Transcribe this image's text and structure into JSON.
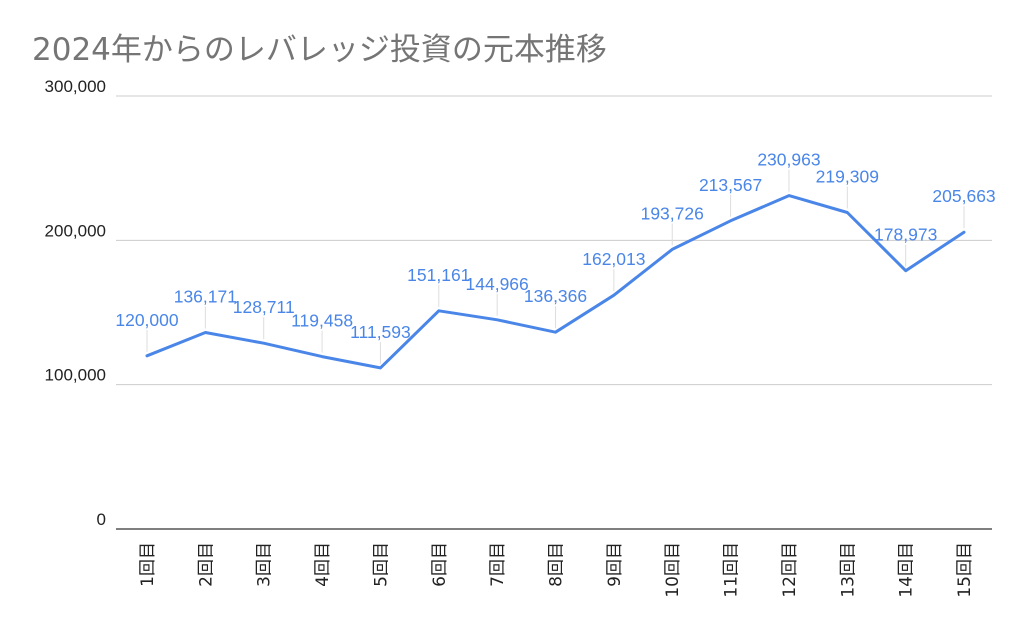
{
  "chart_data": {
    "type": "line",
    "title": "2024年からのレバレッジ投資の元本推移",
    "xlabel": "",
    "ylabel": "",
    "categories": [
      "1回目",
      "2回目",
      "3回目",
      "4回目",
      "5回目",
      "6回目",
      "7回目",
      "8回目",
      "9回目",
      "10回目",
      "11回目",
      "12回目",
      "13回目",
      "14回目",
      "15回目"
    ],
    "series": [
      {
        "values": [
          120000,
          136171,
          128711,
          119458,
          111593,
          151161,
          144966,
          136366,
          162013,
          193726,
          213567,
          230963,
          219309,
          178973,
          205663
        ],
        "value_labels": [
          "120,000",
          "136,171",
          "128,711",
          "119,458",
          "111,593",
          "151,161",
          "144,966",
          "136,366",
          "162,013",
          "193,726",
          "213,567",
          "230,963",
          "219,309",
          "178,973",
          "205,663"
        ],
        "color": "#4a86e8"
      }
    ],
    "ylim": [
      0,
      300000
    ],
    "yticks": [
      0,
      100000,
      200000,
      300000
    ],
    "ytick_labels": [
      "0",
      "100,000",
      "200,000",
      "300,000"
    ],
    "grid": true,
    "legend": "none",
    "colors": {
      "line": "#4a86e8",
      "grid": "#cccccc",
      "axis": "#333333",
      "title": "#757575"
    }
  }
}
